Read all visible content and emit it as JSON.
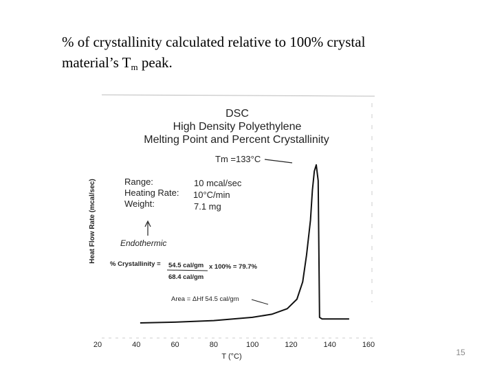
{
  "slide": {
    "heading_line1": "% of crystallinity calculated relative to 100% crystal",
    "heading_line2_pre": "material’s T",
    "heading_line2_sub": "m",
    "heading_line2_post": " peak.",
    "page_number": "15"
  },
  "chart_data": {
    "type": "line",
    "title": [
      "DSC",
      "High Density Polyethylene",
      "Melting Point and Percent Crystallinity"
    ],
    "xlabel": "T (°C)",
    "ylabel": "Heat Flow Rate (mcal/sec)",
    "xlim": [
      20,
      160
    ],
    "x_ticks": [
      20,
      40,
      60,
      80,
      100,
      120,
      140,
      160
    ],
    "grid": false,
    "series": [
      {
        "x": [
          42,
          60,
          80,
          100,
          110,
          118,
          123,
          126,
          128,
          130,
          131,
          132,
          133,
          134,
          134.7,
          136,
          140,
          150
        ],
        "y": [
          0.0,
          0.05,
          0.15,
          0.35,
          0.55,
          0.9,
          1.5,
          2.6,
          4.3,
          6.5,
          8.4,
          9.6,
          10.0,
          9.0,
          0.35,
          0.25,
          0.25,
          0.25
        ]
      }
    ],
    "annotations": {
      "tm": "Tm =133°C",
      "range_label": "Range:",
      "range_value": "10 mcal/sec",
      "rate_label": "Heating Rate:",
      "rate_value": "10°C/min",
      "weight_label": "Weight:",
      "weight_value": "7.1 mg",
      "endothermic": "Endothermic",
      "crystallinity_prefix": "% Crystallinity =",
      "crystallinity_numerator": "54.5 cal/gm",
      "crystallinity_rest": "x 100% = 79.7%",
      "crystallinity_denominator": "68.4 cal/gm",
      "area": "Area = ΔHf 54.5 cal/gm"
    }
  }
}
